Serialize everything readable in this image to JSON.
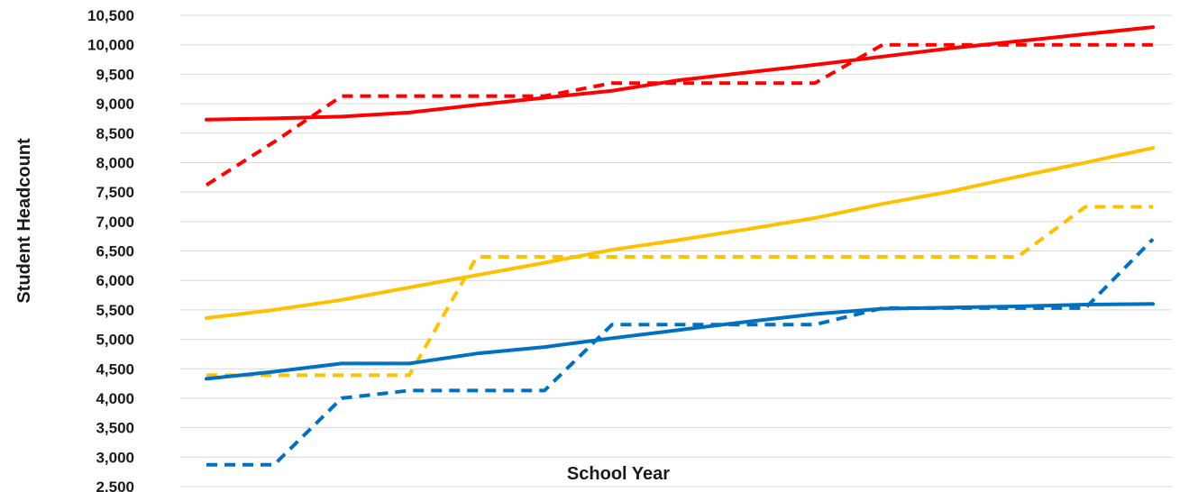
{
  "chart_data": {
    "type": "line",
    "xlabel": "School Year",
    "ylabel": "Student Headcount",
    "ylim": [
      2500,
      10500
    ],
    "ytick_step": 500,
    "ytick_labels": [
      "2,500",
      "3,000",
      "3,500",
      "4,000",
      "4,500",
      "5,000",
      "5,500",
      "6,000",
      "6,500",
      "7,000",
      "7,500",
      "8,000",
      "8,500",
      "9,000",
      "9,500",
      "10,000",
      "10,500"
    ],
    "grid": true,
    "legend": "none",
    "x": [
      0,
      1,
      2,
      3,
      4,
      5,
      6,
      7,
      8,
      9,
      10,
      11,
      12,
      13,
      14
    ],
    "series": [
      {
        "color": "#ff0000",
        "style": "solid",
        "values": [
          8730,
          8750,
          8780,
          8850,
          8980,
          9100,
          9220,
          9400,
          9530,
          9660,
          9800,
          9940,
          10060,
          10180,
          10300
        ]
      },
      {
        "color": "#ff0000",
        "style": "dashed",
        "values": [
          7620,
          8350,
          9130,
          9130,
          9130,
          9130,
          9350,
          9350,
          9350,
          9350,
          10000,
          10000,
          10000,
          10000,
          10000
        ]
      },
      {
        "color": "#ffc000",
        "style": "solid",
        "values": [
          5360,
          5500,
          5670,
          5880,
          6090,
          6300,
          6520,
          6690,
          6870,
          7060,
          7300,
          7510,
          7760,
          8000,
          8250
        ]
      },
      {
        "color": "#ffc000",
        "style": "dashed",
        "values": [
          4390,
          4390,
          4390,
          4390,
          6400,
          6400,
          6400,
          6400,
          6400,
          6400,
          6400,
          6400,
          6400,
          7250,
          7250
        ]
      },
      {
        "color": "#0070c0",
        "style": "solid",
        "values": [
          4330,
          4450,
          4590,
          4590,
          4760,
          4870,
          5020,
          5160,
          5300,
          5430,
          5520,
          5540,
          5560,
          5590,
          5600
        ]
      },
      {
        "color": "#0070c0",
        "style": "dashed",
        "values": [
          2870,
          2870,
          4000,
          4130,
          4130,
          4130,
          5250,
          5250,
          5250,
          5250,
          5530,
          5530,
          5530,
          5530,
          6700
        ]
      }
    ]
  }
}
